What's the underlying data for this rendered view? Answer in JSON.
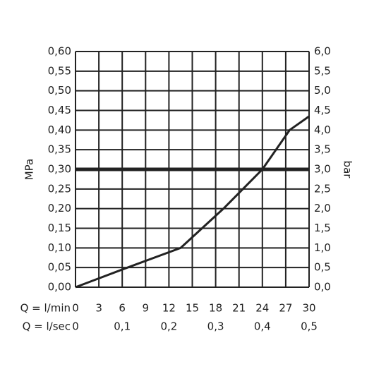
{
  "chart_data": {
    "type": "line",
    "y_label": "MPa",
    "y2_label": "bar",
    "x_label": "Q = l/min",
    "x2_label": "Q = l/sec",
    "xlim": [
      0,
      30
    ],
    "xticks": [
      0,
      3,
      6,
      9,
      12,
      15,
      18,
      21,
      24,
      27,
      30
    ],
    "x2lim": [
      0,
      0.5
    ],
    "x2ticks": [
      0,
      {
        "value": 0.1,
        "label": "0,1"
      },
      {
        "value": 0.2,
        "label": "0,2"
      },
      {
        "value": 0.3,
        "label": "0,3"
      },
      {
        "value": 0.4,
        "label": "0,4"
      },
      {
        "value": 0.5,
        "label": "0,5"
      }
    ],
    "ylim": [
      0,
      0.6
    ],
    "yticks": [
      {
        "value": 0,
        "label": "0,00"
      },
      {
        "value": 0.05,
        "label": "0,05"
      },
      {
        "value": 0.1,
        "label": "0,10"
      },
      {
        "value": 0.15,
        "label": "0,15"
      },
      {
        "value": 0.2,
        "label": "0,20"
      },
      {
        "value": 0.25,
        "label": "0,25"
      },
      {
        "value": 0.3,
        "label": "0,30"
      },
      {
        "value": 0.35,
        "label": "0,35"
      },
      {
        "value": 0.4,
        "label": "0,40"
      },
      {
        "value": 0.45,
        "label": "0,45"
      },
      {
        "value": 0.5,
        "label": "0,50"
      },
      {
        "value": 0.55,
        "label": "0,55"
      },
      {
        "value": 0.6,
        "label": "0,60"
      }
    ],
    "y2lim": [
      0,
      6
    ],
    "y2ticks": [
      {
        "value": 0,
        "label": "0,0"
      },
      {
        "value": 0.5,
        "label": "0,5"
      },
      {
        "value": 1,
        "label": "1,0"
      },
      {
        "value": 1.5,
        "label": "1,5"
      },
      {
        "value": 2,
        "label": "2,0"
      },
      {
        "value": 2.5,
        "label": "2,5"
      },
      {
        "value": 3,
        "label": "3,0"
      },
      {
        "value": 3.5,
        "label": "3,5"
      },
      {
        "value": 4,
        "label": "4,0"
      },
      {
        "value": 4.5,
        "label": "4,5"
      },
      {
        "value": 5,
        "label": "5,0"
      },
      {
        "value": 5.5,
        "label": "5,5"
      },
      {
        "value": 6,
        "label": "6,0"
      }
    ],
    "grid": true,
    "hlines": [
      0.3
    ],
    "series": [
      {
        "color": "#222222",
        "x": [
          0,
          6,
          13.5,
          19,
          24,
          27.5,
          30
        ],
        "values": [
          0,
          0.045,
          0.1,
          0.2,
          0.3,
          0.4,
          0.435
        ]
      }
    ]
  }
}
